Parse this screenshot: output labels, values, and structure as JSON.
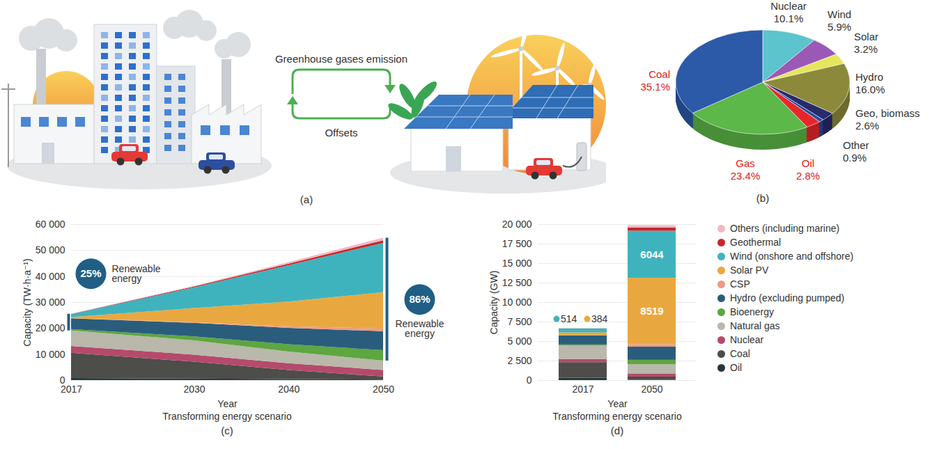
{
  "diagram": {
    "caption": "(a)",
    "labels": [
      "Greenhouse gases emission",
      "Offsets"
    ]
  },
  "chart_data": [
    {
      "type": "pie",
      "title": "(b)",
      "categories": [
        "Nuclear",
        "Wind",
        "Solar",
        "Hydro",
        "Geo, biomass",
        "Other",
        "Oil",
        "Gas",
        "Coal"
      ],
      "values": [
        10.1,
        5.9,
        3.2,
        16.0,
        2.6,
        0.9,
        2.8,
        23.4,
        35.1
      ],
      "value_labels": [
        "10.1%",
        "5.9%",
        "3.2%",
        "16.0%",
        "2.6%",
        "0.9%",
        "2.8%",
        "23.4%",
        "35.1%"
      ],
      "colors": [
        "#5bc4cc",
        "#9b59b6",
        "#e6e65a",
        "#8c8a3a",
        "#262b6e",
        "#2b4a9a",
        "#e8262a",
        "#5cb848",
        "#2d5aa8"
      ],
      "data_labels": true
    },
    {
      "type": "area",
      "stacked": true,
      "title": "(c)",
      "subtitle": "Transforming energy scenario",
      "xlabel": "Year",
      "ylabel": "Capacity (TW·h·a⁻¹)",
      "x": [
        2017,
        2030,
        2040,
        2050
      ],
      "xlim": [
        2017,
        2050
      ],
      "xticks": [
        2017,
        2030,
        2040,
        2050
      ],
      "ylim": [
        0,
        60000
      ],
      "yticks": [
        0,
        {
          "value": 10000,
          "label": "10 000"
        },
        {
          "value": 20000,
          "label": "20 000"
        },
        {
          "value": 30000,
          "label": "30 000"
        },
        {
          "value": 40000,
          "label": "40 000"
        },
        {
          "value": 50000,
          "label": "50 000"
        },
        {
          "value": 60000,
          "label": "60 000"
        }
      ],
      "grid": true,
      "annotations": [
        "25%",
        "Renewable energy",
        "86%",
        "Renewable energy"
      ],
      "series": [
        {
          "name": "Others (including marine)",
          "color": "#f2b8c0",
          "values": [
            60,
            200,
            600,
            1000
          ]
        },
        {
          "name": "Geothermal",
          "color": "#c8262c",
          "values": [
            90,
            300,
            600,
            1000
          ]
        },
        {
          "name": "Wind (onshore and offshore)",
          "color": "#3fb3bd",
          "values": [
            1100,
            8000,
            14000,
            19000
          ]
        },
        {
          "name": "Solar PV",
          "color": "#e9a83f",
          "values": [
            450,
            5500,
            9500,
            14000
          ]
        },
        {
          "name": "CSP",
          "color": "#ee9a86",
          "values": [
            10,
            200,
            600,
            1000
          ]
        },
        {
          "name": "Hydro (excluding pumped)",
          "color": "#2a5d7c",
          "values": [
            4200,
            5200,
            6300,
            7300
          ]
        },
        {
          "name": "Bioenergy",
          "color": "#5da640",
          "values": [
            500,
            1500,
            2800,
            4000
          ]
        },
        {
          "name": "Natural gas",
          "color": "#b9b8aa",
          "values": [
            6000,
            5500,
            4500,
            3600
          ]
        },
        {
          "name": "Nuclear",
          "color": "#b54a6c",
          "values": [
            2600,
            2700,
            2600,
            2500
          ]
        },
        {
          "name": "Coal",
          "color": "#4d4d4a",
          "values": [
            9700,
            6500,
            3500,
            1200
          ]
        },
        {
          "name": "Oil",
          "color": "#24383c",
          "values": [
            800,
            600,
            400,
            200
          ]
        }
      ]
    },
    {
      "type": "bar",
      "stacked": true,
      "title": "(d)",
      "subtitle": "Transforming energy scenario",
      "xlabel": "Year",
      "ylabel": "Capacity (GW)",
      "categories": [
        "2017",
        "2050"
      ],
      "ylim": [
        0,
        20000
      ],
      "yticks": [
        0,
        {
          "value": 2500,
          "label": "2 500"
        },
        {
          "value": 5000,
          "label": "5 000"
        },
        {
          "value": 7500,
          "label": "7 500"
        },
        {
          "value": 10000,
          "label": "10 000"
        },
        {
          "value": 12500,
          "label": "12 500"
        },
        {
          "value": 15000,
          "label": "15 000"
        },
        {
          "value": 17500,
          "label": "17 500"
        },
        {
          "value": 20000,
          "label": "20 000"
        }
      ],
      "grid": true,
      "legend": "right",
      "series": [
        {
          "name": "Others (including marine)",
          "color": "#f2b8c0",
          "values": [
            10,
            300
          ]
        },
        {
          "name": "Geothermal",
          "color": "#c8262c",
          "values": [
            13,
            400
          ]
        },
        {
          "name": "Wind (onshore and offshore)",
          "color": "#3fb3bd",
          "values": [
            514,
            6044
          ],
          "data_labels": true
        },
        {
          "name": "Solar PV",
          "color": "#e9a83f",
          "values": [
            384,
            8519
          ],
          "data_labels": true
        },
        {
          "name": "CSP",
          "color": "#ee9a86",
          "values": [
            5,
            300
          ]
        },
        {
          "name": "Hydro (excluding pumped)",
          "color": "#2a5d7c",
          "values": [
            1150,
            1700
          ]
        },
        {
          "name": "Bioenergy",
          "color": "#5da640",
          "values": [
            120,
            550
          ]
        },
        {
          "name": "Natural gas",
          "color": "#b9b8aa",
          "values": [
            1750,
            1200
          ]
        },
        {
          "name": "Nuclear",
          "color": "#b54a6c",
          "values": [
            400,
            400
          ]
        },
        {
          "name": "Coal",
          "color": "#4d4d4a",
          "values": [
            2000,
            400
          ]
        },
        {
          "name": "Oil",
          "color": "#24383c",
          "values": [
            300,
            50
          ]
        }
      ]
    }
  ]
}
